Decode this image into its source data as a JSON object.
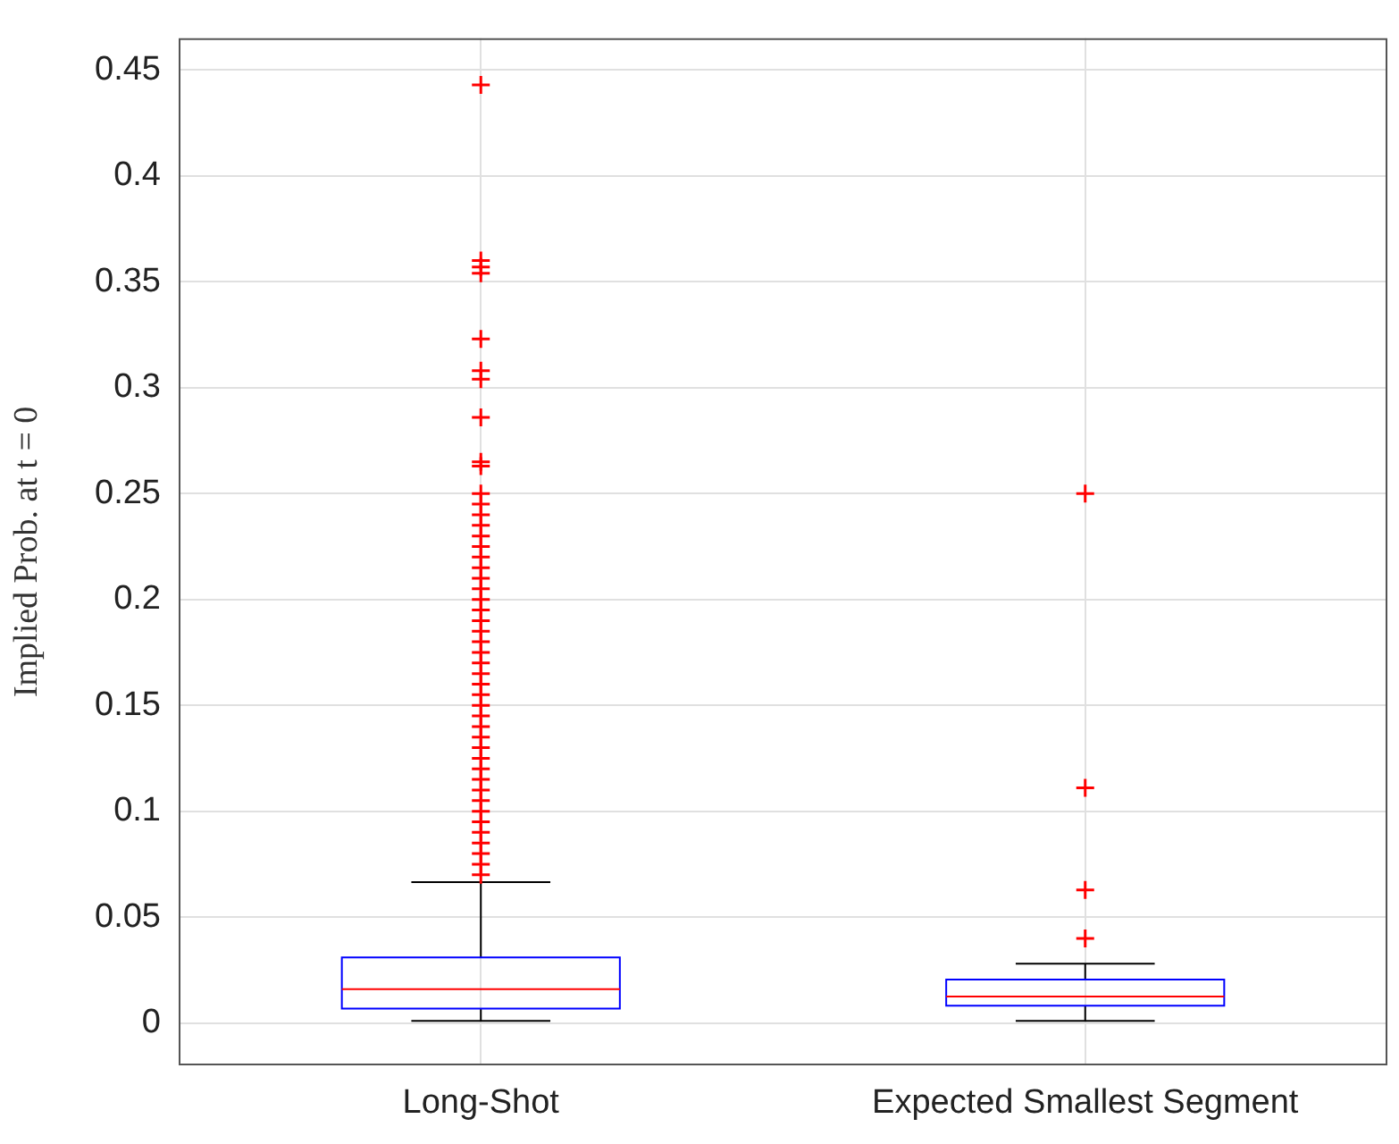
{
  "chart_data": {
    "type": "box",
    "ylabel": "Implied Prob. at t = 0",
    "categories": [
      "Long-Shot",
      "Expected Smallest Segment"
    ],
    "color": "#0000ff",
    "grid": true,
    "marker": "cross",
    "ylim": [
      -0.02,
      0.465
    ],
    "yticks": [
      0,
      0.05,
      0.1,
      0.15,
      0.2,
      0.25,
      0.3,
      0.35,
      0.4,
      0.45
    ],
    "boxes": [
      {
        "low": 0.001,
        "q1": 0.0068,
        "median": 0.016,
        "q3": 0.031,
        "high": 0.0665,
        "outliers": [
          0.443,
          0.36,
          0.357,
          0.354,
          0.323,
          0.308,
          0.304,
          0.286,
          0.265,
          0.263,
          0.25,
          0.245,
          0.24,
          0.235,
          0.23,
          0.225,
          0.22,
          0.215,
          0.21,
          0.205,
          0.2,
          0.195,
          0.19,
          0.185,
          0.18,
          0.175,
          0.17,
          0.165,
          0.16,
          0.155,
          0.15,
          0.145,
          0.14,
          0.135,
          0.13,
          0.125,
          0.12,
          0.115,
          0.11,
          0.105,
          0.1,
          0.095,
          0.09,
          0.085,
          0.08,
          0.075,
          0.07
        ]
      },
      {
        "low": 0.001,
        "q1": 0.0082,
        "median": 0.0125,
        "q3": 0.0205,
        "high": 0.028,
        "outliers": [
          0.25,
          0.111,
          0.0628,
          0.0399
        ]
      }
    ]
  }
}
